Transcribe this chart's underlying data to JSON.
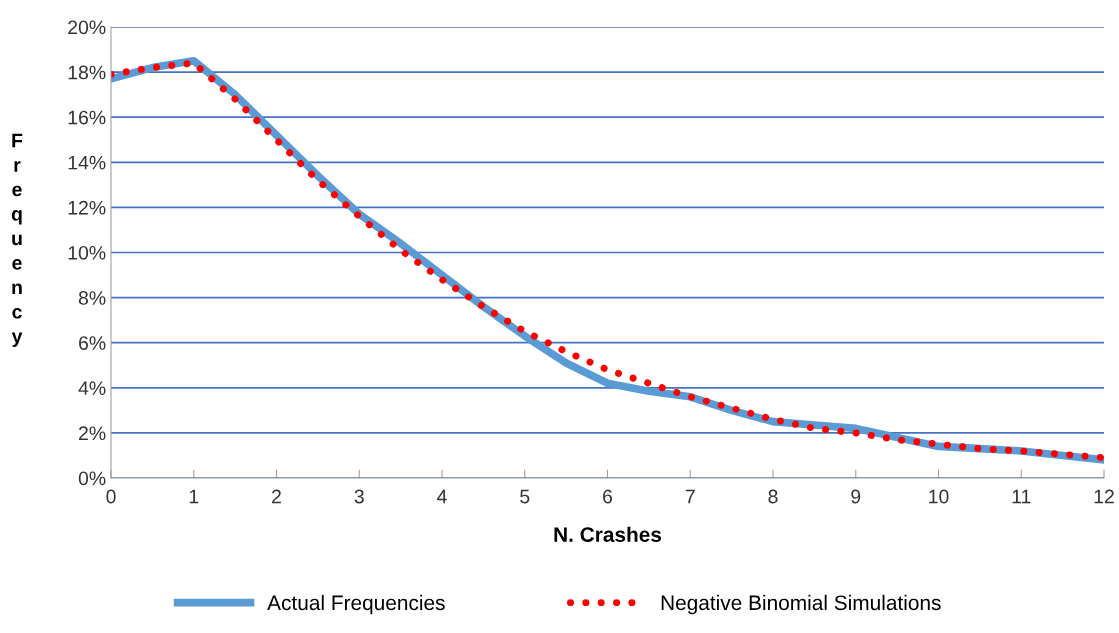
{
  "chart_data": {
    "type": "line",
    "xlabel": "N. Crashes",
    "ylabel": "Frequency",
    "x": [
      0,
      0.5,
      1,
      1.5,
      2,
      2.5,
      3,
      3.5,
      4,
      4.5,
      5,
      5.5,
      6,
      6.5,
      7,
      7.5,
      8,
      8.5,
      9,
      9.5,
      10,
      10.5,
      11,
      11.5,
      12
    ],
    "series": [
      {
        "name": "Actual Frequencies",
        "color": "#5b9bd5",
        "line_style": "solid",
        "values": [
          17.7,
          18.2,
          18.5,
          17.0,
          15.2,
          13.4,
          11.7,
          10.4,
          9.0,
          7.6,
          6.3,
          5.1,
          4.2,
          3.85,
          3.6,
          3.0,
          2.5,
          2.35,
          2.2,
          1.8,
          1.4,
          1.3,
          1.2,
          1.0,
          0.8
        ]
      },
      {
        "name": "Negative Binomial Simulations",
        "color": "#ff0000",
        "line_style": "dotted",
        "values": [
          17.9,
          18.2,
          18.4,
          16.8,
          15.0,
          13.2,
          11.6,
          10.1,
          8.8,
          7.6,
          6.5,
          5.6,
          4.8,
          4.2,
          3.6,
          3.1,
          2.6,
          2.2,
          2.0,
          1.7,
          1.5,
          1.3,
          1.2,
          1.05,
          0.9
        ]
      }
    ],
    "xlim": [
      0,
      12
    ],
    "xticks": [
      0,
      1,
      2,
      3,
      4,
      5,
      6,
      7,
      8,
      9,
      10,
      11,
      12
    ],
    "ylim": [
      0,
      20
    ],
    "yticks": [
      {
        "value": 0,
        "label": "0%"
      },
      {
        "value": 2,
        "label": "2%"
      },
      {
        "value": 4,
        "label": "4%"
      },
      {
        "value": 6,
        "label": "6%"
      },
      {
        "value": 8,
        "label": "8%"
      },
      {
        "value": 10,
        "label": "10%"
      },
      {
        "value": 12,
        "label": "12%"
      },
      {
        "value": 14,
        "label": "14%"
      },
      {
        "value": 16,
        "label": "16%"
      },
      {
        "value": 18,
        "label": "18%"
      },
      {
        "value": 20,
        "label": "20%"
      }
    ],
    "grid": "y",
    "legend": "bottom",
    "marker": "none"
  }
}
